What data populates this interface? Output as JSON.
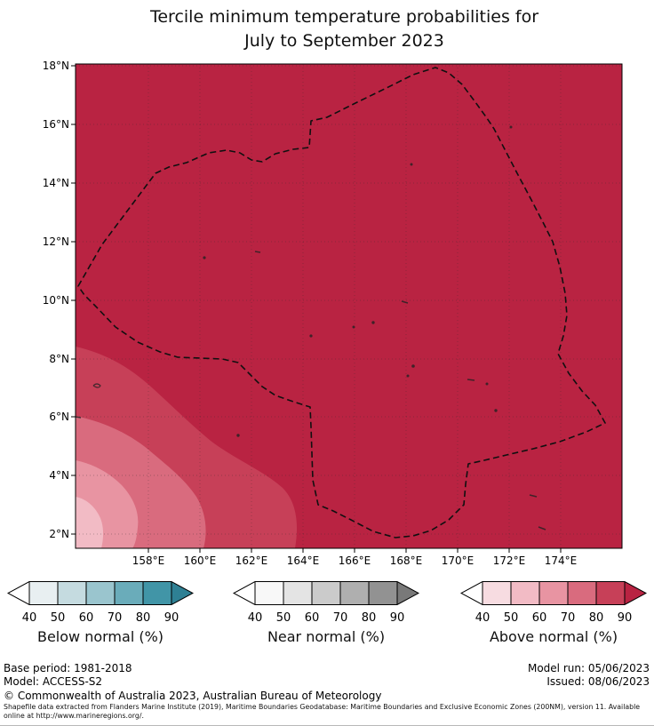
{
  "title": {
    "line1": "Tercile minimum temperature probabilities for",
    "line2": "July to September 2023"
  },
  "map": {
    "lat_ticks": [
      "18°N",
      "16°N",
      "14°N",
      "12°N",
      "10°N",
      "8°N",
      "6°N",
      "4°N",
      "2°N"
    ],
    "lon_ticks": [
      "158°E",
      "160°E",
      "162°E",
      "164°E",
      "166°E",
      "168°E",
      "170°E",
      "172°E",
      "174°E"
    ]
  },
  "colors": {
    "above": [
      "#F7DCE1",
      "#F2BBC5",
      "#E894A2",
      "#D96B7E",
      "#C74058",
      "#B92342"
    ],
    "near": [
      "#F8F8F8",
      "#E4E4E4",
      "#CBCBCB",
      "#AFAFAF",
      "#929292",
      "#797979"
    ],
    "below": [
      "#E8EFF1",
      "#C5DBE0",
      "#9AC5CE",
      "#6AACBA",
      "#4195A7",
      "#2E8094"
    ],
    "boundary": "#101010",
    "tip_under": "#FFFFFF"
  },
  "legend": {
    "ticks": [
      "40",
      "50",
      "60",
      "70",
      "80",
      "90"
    ],
    "bars": [
      {
        "id": "below-normal",
        "label": "Below normal (%)",
        "palette": "below"
      },
      {
        "id": "near-normal",
        "label": "Near normal (%)",
        "palette": "near"
      },
      {
        "id": "above-normal",
        "label": "Above normal (%)",
        "palette": "above"
      }
    ]
  },
  "footer": {
    "base_period": "Base period: 1981-2018",
    "model": "Model: ACCESS-S2",
    "model_run": "Model run: 05/06/2023",
    "issued": "Issued: 08/06/2023",
    "copyright": "© Commonwealth of Australia 2023, Australian Bureau of Meteorology",
    "attribution": "Shapefile data extracted from Flanders Marine Institute (2019), Maritime Boundaries Geodatabase: Maritime Boundaries and Exclusive Economic Zones (200NM), version 11. Available online at http://www.marineregions.org/."
  },
  "chart_data": {
    "type": "heatmap",
    "title": "Tercile minimum temperature probabilities for July to September 2023",
    "x_ticks": [
      "158°E",
      "160°E",
      "162°E",
      "164°E",
      "166°E",
      "168°E",
      "170°E",
      "172°E",
      "174°E"
    ],
    "y_ticks": [
      "18°N",
      "16°N",
      "14°N",
      "12°N",
      "10°N",
      "8°N",
      "6°N",
      "4°N",
      "2°N"
    ],
    "categories": [
      "Below normal (%)",
      "Near normal (%)",
      "Above normal (%)"
    ],
    "legend_bins": [
      "<40",
      "40-50",
      "50-60",
      "60-70",
      "70-80",
      "80-90",
      ">90"
    ],
    "dominant_value": "Above normal > 90% over nearly the entire domain",
    "gradient_region": "Probabilities decrease toward the southwest corner through 80-90, 70-80, 60-70 and 50-60 contour bands",
    "overlay": "Dashed exclusive-economic-zone boundary polygon with dotted lat/lon gridlines every 2 degrees"
  }
}
